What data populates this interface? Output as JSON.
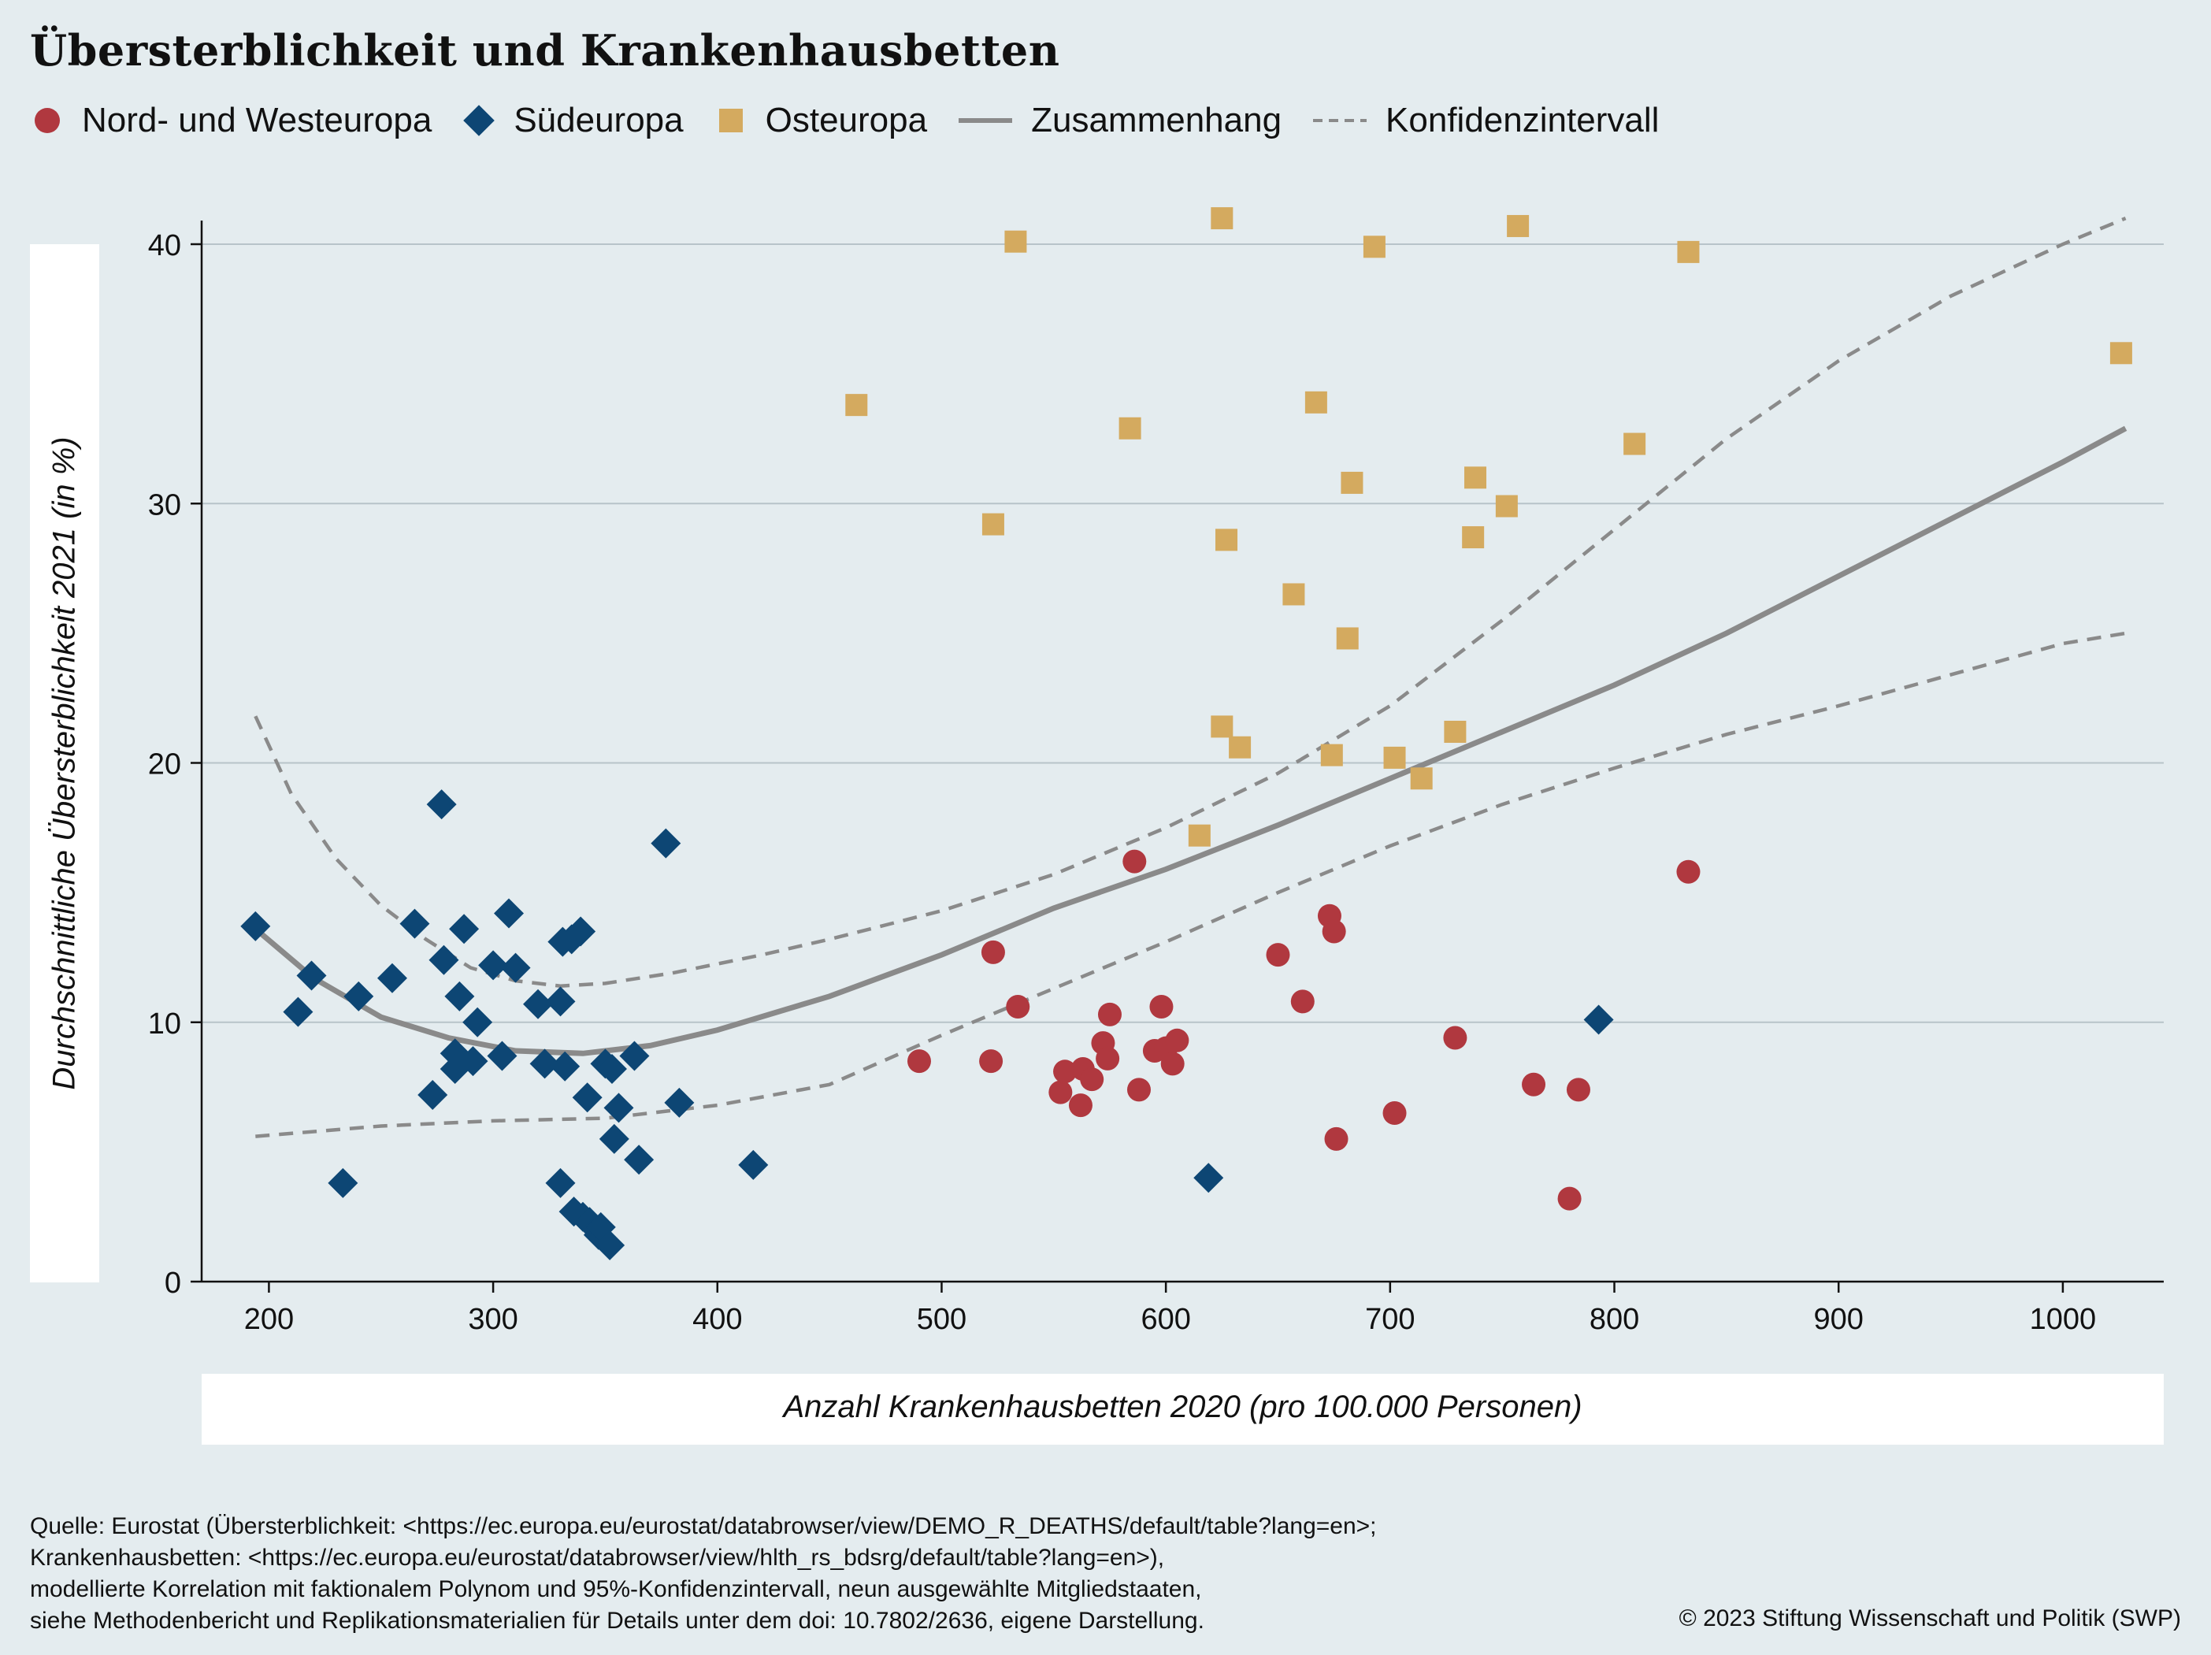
{
  "title": "Übersterblichkeit und Krankenhausbetten",
  "legend": {
    "nord": "Nord- und Westeuropa",
    "sued": "Südeuropa",
    "ost": "Osteuropa",
    "fit": "Zusammenhang",
    "ci": "Konfidenzintervall"
  },
  "colors": {
    "nord": "#b0383f",
    "sued": "#0d4674",
    "ost": "#d4aa5f",
    "fit": "#8a8a8a",
    "background": "#e4ecef"
  },
  "footer": {
    "line1": "Quelle: Eurostat (Übersterblichkeit: <https://ec.europa.eu/eurostat/databrowser/view/DEMO_R_DEATHS/default/table?lang=en>;",
    "line2": "Krankenhausbetten: <https://ec.europa.eu/eurostat/databrowser/view/hlth_rs_bdsrg/default/table?lang=en>),",
    "line3": "modellierte Korrelation mit faktionalem Polynom und 95%-Konfidenzintervall, neun ausgewählte Mitgliedstaaten,",
    "line4": "siehe Methodenbericht und Replikationsmaterialien für Details unter dem doi: 10.7802/2636, eigene Darstellung.",
    "copyright": "© 2023 Stiftung Wissenschaft und Politik (SWP)"
  },
  "chart_data": {
    "type": "scatter",
    "title": "Übersterblichkeit und Krankenhausbetten",
    "xlabel": "Anzahl Krankenhausbetten 2020 (pro 100.000 Personen)",
    "ylabel": "Durchschnittliche Übersterblichkeit 2021 (in %)",
    "xlim": [
      170,
      1045
    ],
    "ylim": [
      0,
      41
    ],
    "xticks": [
      200,
      300,
      400,
      500,
      600,
      700,
      800,
      900,
      1000
    ],
    "yticks": [
      0,
      10,
      20,
      30,
      40
    ],
    "grid": "horizontal",
    "legend_position": "top-left",
    "series": [
      {
        "name": "Nord- und Westeuropa",
        "marker": "circle",
        "points": [
          [
            490,
            8.5
          ],
          [
            522,
            8.5
          ],
          [
            523,
            12.7
          ],
          [
            534,
            10.6
          ],
          [
            553,
            7.3
          ],
          [
            555,
            8.1
          ],
          [
            562,
            6.8
          ],
          [
            563,
            8.2
          ],
          [
            567,
            7.8
          ],
          [
            572,
            9.2
          ],
          [
            574,
            8.6
          ],
          [
            575,
            10.3
          ],
          [
            586,
            16.2
          ],
          [
            588,
            7.4
          ],
          [
            595,
            8.9
          ],
          [
            598,
            10.6
          ],
          [
            600,
            9.0
          ],
          [
            603,
            8.4
          ],
          [
            605,
            9.3
          ],
          [
            650,
            12.6
          ],
          [
            661,
            10.8
          ],
          [
            673,
            14.1
          ],
          [
            675,
            13.5
          ],
          [
            676,
            5.5
          ],
          [
            702,
            6.5
          ],
          [
            729,
            9.4
          ],
          [
            764,
            7.6
          ],
          [
            780,
            3.2
          ],
          [
            784,
            7.4
          ],
          [
            833,
            15.8
          ]
        ]
      },
      {
        "name": "Südeuropa",
        "marker": "diamond",
        "points": [
          [
            194,
            13.7
          ],
          [
            213,
            10.4
          ],
          [
            219,
            11.8
          ],
          [
            233,
            3.8
          ],
          [
            240,
            11.0
          ],
          [
            255,
            11.7
          ],
          [
            265,
            13.8
          ],
          [
            273,
            7.2
          ],
          [
            277,
            18.4
          ],
          [
            278,
            12.4
          ],
          [
            283,
            8.8
          ],
          [
            283,
            8.2
          ],
          [
            285,
            11.0
          ],
          [
            287,
            13.6
          ],
          [
            291,
            8.5
          ],
          [
            293,
            10.0
          ],
          [
            300,
            12.2
          ],
          [
            304,
            8.7
          ],
          [
            307,
            14.2
          ],
          [
            310,
            12.1
          ],
          [
            320,
            10.7
          ],
          [
            323,
            8.4
          ],
          [
            330,
            3.8
          ],
          [
            330,
            10.8
          ],
          [
            331,
            13.1
          ],
          [
            332,
            8.3
          ],
          [
            335,
            13.2
          ],
          [
            336,
            2.7
          ],
          [
            339,
            13.5
          ],
          [
            340,
            2.5
          ],
          [
            342,
            7.1
          ],
          [
            343,
            2.3
          ],
          [
            346,
            2.0
          ],
          [
            347,
            1.8
          ],
          [
            348,
            2.1
          ],
          [
            350,
            8.4
          ],
          [
            352,
            1.4
          ],
          [
            353,
            8.2
          ],
          [
            354,
            5.5
          ],
          [
            356,
            6.7
          ],
          [
            363,
            8.7
          ],
          [
            365,
            4.7
          ],
          [
            377,
            16.9
          ],
          [
            383,
            6.9
          ],
          [
            416,
            4.5
          ],
          [
            619,
            4.0
          ],
          [
            793,
            10.1
          ]
        ]
      },
      {
        "name": "Osteuropa",
        "marker": "square",
        "points": [
          [
            462,
            33.8
          ],
          [
            523,
            29.2
          ],
          [
            533,
            40.1
          ],
          [
            584,
            32.9
          ],
          [
            615,
            17.2
          ],
          [
            625,
            21.4
          ],
          [
            625,
            41.0
          ],
          [
            627,
            28.6
          ],
          [
            633,
            20.6
          ],
          [
            657,
            26.5
          ],
          [
            667,
            33.9
          ],
          [
            674,
            20.3
          ],
          [
            681,
            24.8
          ],
          [
            683,
            30.8
          ],
          [
            693,
            39.9
          ],
          [
            702,
            20.2
          ],
          [
            714,
            19.4
          ],
          [
            729,
            21.2
          ],
          [
            737,
            28.7
          ],
          [
            738,
            31.0
          ],
          [
            752,
            29.9
          ],
          [
            757,
            40.7
          ],
          [
            809,
            32.3
          ],
          [
            833,
            39.7
          ],
          [
            1026,
            35.8
          ]
        ]
      },
      {
        "name": "Zusammenhang",
        "type": "line",
        "points": [
          [
            194,
            13.6
          ],
          [
            220,
            11.7
          ],
          [
            250,
            10.2
          ],
          [
            280,
            9.4
          ],
          [
            310,
            8.9
          ],
          [
            340,
            8.8
          ],
          [
            370,
            9.1
          ],
          [
            400,
            9.7
          ],
          [
            450,
            11.0
          ],
          [
            500,
            12.6
          ],
          [
            550,
            14.4
          ],
          [
            600,
            15.9
          ],
          [
            650,
            17.6
          ],
          [
            700,
            19.4
          ],
          [
            750,
            21.2
          ],
          [
            800,
            23.0
          ],
          [
            850,
            25.0
          ],
          [
            900,
            27.2
          ],
          [
            950,
            29.4
          ],
          [
            1000,
            31.6
          ],
          [
            1028,
            32.9
          ]
        ]
      },
      {
        "name": "Konfidenzintervall",
        "type": "line",
        "style": "dashed",
        "upper": [
          [
            194,
            21.8
          ],
          [
            210,
            18.8
          ],
          [
            230,
            16.3
          ],
          [
            250,
            14.5
          ],
          [
            270,
            13.2
          ],
          [
            290,
            12.1
          ],
          [
            310,
            11.6
          ],
          [
            330,
            11.4
          ],
          [
            350,
            11.5
          ],
          [
            380,
            11.9
          ],
          [
            420,
            12.6
          ],
          [
            450,
            13.2
          ],
          [
            500,
            14.3
          ],
          [
            550,
            15.7
          ],
          [
            600,
            17.5
          ],
          [
            650,
            19.6
          ],
          [
            700,
            22.2
          ],
          [
            750,
            25.5
          ],
          [
            800,
            29.0
          ],
          [
            850,
            32.5
          ],
          [
            900,
            35.5
          ],
          [
            950,
            38.0
          ],
          [
            1000,
            40.0
          ],
          [
            1028,
            41.0
          ]
        ],
        "lower": [
          [
            194,
            5.6
          ],
          [
            250,
            6.0
          ],
          [
            300,
            6.2
          ],
          [
            350,
            6.3
          ],
          [
            400,
            6.8
          ],
          [
            450,
            7.6
          ],
          [
            500,
            9.5
          ],
          [
            550,
            11.3
          ],
          [
            600,
            13.1
          ],
          [
            650,
            15.0
          ],
          [
            700,
            16.8
          ],
          [
            750,
            18.4
          ],
          [
            800,
            19.8
          ],
          [
            850,
            21.1
          ],
          [
            900,
            22.2
          ],
          [
            950,
            23.4
          ],
          [
            1000,
            24.6
          ],
          [
            1028,
            25.0
          ]
        ]
      }
    ]
  }
}
